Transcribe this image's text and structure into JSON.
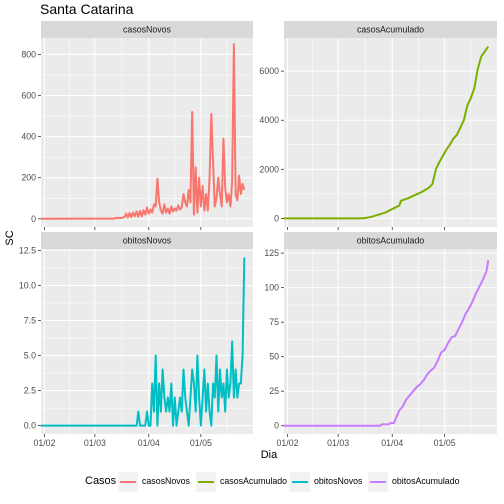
{
  "title": "Santa Catarina",
  "colors": {
    "panel_bg": "#ebebeb",
    "strip_bg": "#d9d9d9",
    "grid": "#ffffff",
    "casosNovos": "#F8766D",
    "casosAcumulado": "#7CAE00",
    "obitosNovos": "#00BFC4",
    "obitosAcumulado": "#C77CFF"
  },
  "legend": {
    "title": "Casos",
    "items": [
      {
        "label": "casosNovos",
        "color": "#F8766D"
      },
      {
        "label": "casosAcumulado",
        "color": "#7CAE00"
      },
      {
        "label": "obitosNovos",
        "color": "#00BFC4"
      },
      {
        "label": "obitosAcumulado",
        "color": "#C77CFF"
      }
    ]
  },
  "chart_data": [
    {
      "type": "line",
      "panel": "casosNovos",
      "strip": "casosNovos",
      "color": "#F8766D",
      "xlabel": "Dia",
      "ylabel": "SC",
      "x_range": [
        "2020-01-30",
        "2020-05-31"
      ],
      "ylim": [
        -40,
        880
      ],
      "y_ticks": [
        0,
        200,
        400,
        600,
        800
      ],
      "x_ticks": [
        "01/02",
        "01/03",
        "01/04",
        "01/05"
      ],
      "points": [
        [
          "2020-01-30",
          0
        ],
        [
          "2020-02-20",
          1
        ],
        [
          "2020-03-12",
          1
        ],
        [
          "2020-03-14",
          5
        ],
        [
          "2020-03-16",
          3
        ],
        [
          "2020-03-18",
          8
        ],
        [
          "2020-03-19",
          25
        ],
        [
          "2020-03-20",
          6
        ],
        [
          "2020-03-21",
          28
        ],
        [
          "2020-03-22",
          8
        ],
        [
          "2020-03-23",
          30
        ],
        [
          "2020-03-24",
          12
        ],
        [
          "2020-03-25",
          35
        ],
        [
          "2020-03-26",
          10
        ],
        [
          "2020-03-27",
          38
        ],
        [
          "2020-03-28",
          12
        ],
        [
          "2020-03-29",
          42
        ],
        [
          "2020-03-30",
          20
        ],
        [
          "2020-03-31",
          55
        ],
        [
          "2020-04-01",
          25
        ],
        [
          "2020-04-02",
          45
        ],
        [
          "2020-04-03",
          30
        ],
        [
          "2020-04-04",
          70
        ],
        [
          "2020-04-05",
          60
        ],
        [
          "2020-04-06",
          195
        ],
        [
          "2020-04-07",
          80
        ],
        [
          "2020-04-08",
          40
        ],
        [
          "2020-04-09",
          25
        ],
        [
          "2020-04-10",
          70
        ],
        [
          "2020-04-11",
          30
        ],
        [
          "2020-04-12",
          50
        ],
        [
          "2020-04-13",
          25
        ],
        [
          "2020-04-14",
          60
        ],
        [
          "2020-04-15",
          35
        ],
        [
          "2020-04-16",
          50
        ],
        [
          "2020-04-17",
          40
        ],
        [
          "2020-04-18",
          65
        ],
        [
          "2020-04-19",
          45
        ],
        [
          "2020-04-20",
          55
        ],
        [
          "2020-04-21",
          120
        ],
        [
          "2020-04-22",
          80
        ],
        [
          "2020-04-23",
          60
        ],
        [
          "2020-04-24",
          140
        ],
        [
          "2020-04-25",
          80
        ],
        [
          "2020-04-26",
          520
        ],
        [
          "2020-04-27",
          20
        ],
        [
          "2020-04-28",
          250
        ],
        [
          "2020-04-29",
          30
        ],
        [
          "2020-04-30",
          200
        ],
        [
          "2020-05-01",
          60
        ],
        [
          "2020-05-02",
          160
        ],
        [
          "2020-05-03",
          40
        ],
        [
          "2020-05-04",
          120
        ],
        [
          "2020-05-05",
          40
        ],
        [
          "2020-05-06",
          200
        ],
        [
          "2020-05-07",
          510
        ],
        [
          "2020-05-08",
          280
        ],
        [
          "2020-05-09",
          60
        ],
        [
          "2020-05-10",
          100
        ],
        [
          "2020-05-11",
          200
        ],
        [
          "2020-05-12",
          120
        ],
        [
          "2020-05-13",
          60
        ],
        [
          "2020-05-14",
          390
        ],
        [
          "2020-05-15",
          150
        ],
        [
          "2020-05-16",
          80
        ],
        [
          "2020-05-17",
          120
        ],
        [
          "2020-05-18",
          60
        ],
        [
          "2020-05-19",
          180
        ],
        [
          "2020-05-20",
          850
        ],
        [
          "2020-05-21",
          120
        ],
        [
          "2020-05-22",
          90
        ],
        [
          "2020-05-23",
          210
        ],
        [
          "2020-05-24",
          120
        ],
        [
          "2020-05-25",
          170
        ],
        [
          "2020-05-26",
          140
        ]
      ]
    },
    {
      "type": "line",
      "panel": "casosAcumulado",
      "strip": "casosAcumulado",
      "color": "#7CAE00",
      "x_range": [
        "2020-01-30",
        "2020-05-31"
      ],
      "ylim": [
        -350,
        7350
      ],
      "y_ticks": [
        0,
        2000,
        4000,
        6000
      ],
      "x_ticks": [
        "01/02",
        "01/03",
        "01/04",
        "01/05"
      ],
      "points": [
        [
          "2020-01-30",
          0
        ],
        [
          "2020-03-12",
          2
        ],
        [
          "2020-03-16",
          10
        ],
        [
          "2020-03-20",
          60
        ],
        [
          "2020-03-24",
          150
        ],
        [
          "2020-03-28",
          240
        ],
        [
          "2020-04-01",
          380
        ],
        [
          "2020-04-05",
          520
        ],
        [
          "2020-04-06",
          720
        ],
        [
          "2020-04-10",
          820
        ],
        [
          "2020-04-14",
          950
        ],
        [
          "2020-04-18",
          1080
        ],
        [
          "2020-04-22",
          1250
        ],
        [
          "2020-04-24",
          1400
        ],
        [
          "2020-04-26",
          2000
        ],
        [
          "2020-04-28",
          2300
        ],
        [
          "2020-04-30",
          2550
        ],
        [
          "2020-05-02",
          2800
        ],
        [
          "2020-05-04",
          3000
        ],
        [
          "2020-05-06",
          3250
        ],
        [
          "2020-05-08",
          3400
        ],
        [
          "2020-05-10",
          3700
        ],
        [
          "2020-05-12",
          4000
        ],
        [
          "2020-05-14",
          4600
        ],
        [
          "2020-05-16",
          4900
        ],
        [
          "2020-05-18",
          5300
        ],
        [
          "2020-05-20",
          6100
        ],
        [
          "2020-05-22",
          6600
        ],
        [
          "2020-05-24",
          6800
        ],
        [
          "2020-05-26",
          7000
        ]
      ]
    },
    {
      "type": "line",
      "panel": "obitosNovos",
      "strip": "obitosNovos",
      "color": "#00BFC4",
      "x_range": [
        "2020-01-30",
        "2020-05-31"
      ],
      "ylim": [
        -0.6,
        12.6
      ],
      "y_ticks": [
        0.0,
        2.5,
        5.0,
        7.5,
        10.0,
        12.5
      ],
      "y_tick_labels": [
        "0.0",
        "2.5",
        "5.0",
        "7.5",
        "10.0",
        "12.5"
      ],
      "x_ticks": [
        "01/02",
        "01/03",
        "01/04",
        "01/05"
      ],
      "points": [
        [
          "2020-01-30",
          0
        ],
        [
          "2020-03-25",
          0
        ],
        [
          "2020-03-26",
          1
        ],
        [
          "2020-03-27",
          0
        ],
        [
          "2020-03-30",
          0
        ],
        [
          "2020-03-31",
          1
        ],
        [
          "2020-04-01",
          0
        ],
        [
          "2020-04-02",
          0
        ],
        [
          "2020-04-03",
          3
        ],
        [
          "2020-04-04",
          1
        ],
        [
          "2020-04-05",
          5
        ],
        [
          "2020-04-06",
          0
        ],
        [
          "2020-04-07",
          3
        ],
        [
          "2020-04-08",
          1
        ],
        [
          "2020-04-09",
          4
        ],
        [
          "2020-04-10",
          2
        ],
        [
          "2020-04-11",
          1
        ],
        [
          "2020-04-12",
          2
        ],
        [
          "2020-04-13",
          1
        ],
        [
          "2020-04-14",
          3
        ],
        [
          "2020-04-15",
          0
        ],
        [
          "2020-04-16",
          2
        ],
        [
          "2020-04-17",
          0
        ],
        [
          "2020-04-18",
          1
        ],
        [
          "2020-04-19",
          2
        ],
        [
          "2020-04-20",
          1
        ],
        [
          "2020-04-21",
          4
        ],
        [
          "2020-04-22",
          2
        ],
        [
          "2020-04-23",
          1
        ],
        [
          "2020-04-24",
          0
        ],
        [
          "2020-04-25",
          2
        ],
        [
          "2020-04-26",
          4
        ],
        [
          "2020-04-27",
          3
        ],
        [
          "2020-04-28",
          1
        ],
        [
          "2020-04-29",
          5
        ],
        [
          "2020-04-30",
          2
        ],
        [
          "2020-05-01",
          0
        ],
        [
          "2020-05-02",
          2
        ],
        [
          "2020-05-03",
          4
        ],
        [
          "2020-05-04",
          1
        ],
        [
          "2020-05-05",
          3
        ],
        [
          "2020-05-06",
          1
        ],
        [
          "2020-05-07",
          0
        ],
        [
          "2020-05-08",
          3
        ],
        [
          "2020-05-09",
          2
        ],
        [
          "2020-05-10",
          5
        ],
        [
          "2020-05-11",
          1
        ],
        [
          "2020-05-12",
          4
        ],
        [
          "2020-05-13",
          2
        ],
        [
          "2020-05-14",
          3
        ],
        [
          "2020-05-15",
          1
        ],
        [
          "2020-05-16",
          4
        ],
        [
          "2020-05-17",
          2
        ],
        [
          "2020-05-18",
          3
        ],
        [
          "2020-05-19",
          6
        ],
        [
          "2020-05-20",
          2
        ],
        [
          "2020-05-21",
          4
        ],
        [
          "2020-05-22",
          2
        ],
        [
          "2020-05-23",
          3
        ],
        [
          "2020-05-24",
          3
        ],
        [
          "2020-05-25",
          5
        ],
        [
          "2020-05-26",
          12
        ]
      ]
    },
    {
      "type": "line",
      "panel": "obitosAcumulado",
      "strip": "obitosAcumulado",
      "color": "#C77CFF",
      "x_range": [
        "2020-01-30",
        "2020-05-31"
      ],
      "ylim": [
        -6,
        128
      ],
      "y_ticks": [
        0,
        25,
        50,
        75,
        100,
        125
      ],
      "x_ticks": [
        "01/02",
        "01/03",
        "01/04",
        "01/05"
      ],
      "points": [
        [
          "2020-01-30",
          0
        ],
        [
          "2020-03-25",
          0
        ],
        [
          "2020-03-26",
          1
        ],
        [
          "2020-03-30",
          1
        ],
        [
          "2020-03-31",
          2
        ],
        [
          "2020-04-02",
          2
        ],
        [
          "2020-04-03",
          5
        ],
        [
          "2020-04-05",
          11
        ],
        [
          "2020-04-07",
          14
        ],
        [
          "2020-04-09",
          19
        ],
        [
          "2020-04-11",
          22
        ],
        [
          "2020-04-13",
          25
        ],
        [
          "2020-04-15",
          28
        ],
        [
          "2020-04-17",
          30
        ],
        [
          "2020-04-19",
          33
        ],
        [
          "2020-04-21",
          37
        ],
        [
          "2020-04-23",
          40
        ],
        [
          "2020-04-25",
          42
        ],
        [
          "2020-04-27",
          47
        ],
        [
          "2020-04-29",
          53
        ],
        [
          "2020-05-01",
          55
        ],
        [
          "2020-05-03",
          60
        ],
        [
          "2020-05-05",
          64
        ],
        [
          "2020-05-07",
          65
        ],
        [
          "2020-05-09",
          70
        ],
        [
          "2020-05-11",
          75
        ],
        [
          "2020-05-13",
          81
        ],
        [
          "2020-05-15",
          85
        ],
        [
          "2020-05-17",
          90
        ],
        [
          "2020-05-19",
          96
        ],
        [
          "2020-05-21",
          101
        ],
        [
          "2020-05-23",
          106
        ],
        [
          "2020-05-25",
          112
        ],
        [
          "2020-05-26",
          120
        ]
      ]
    }
  ]
}
